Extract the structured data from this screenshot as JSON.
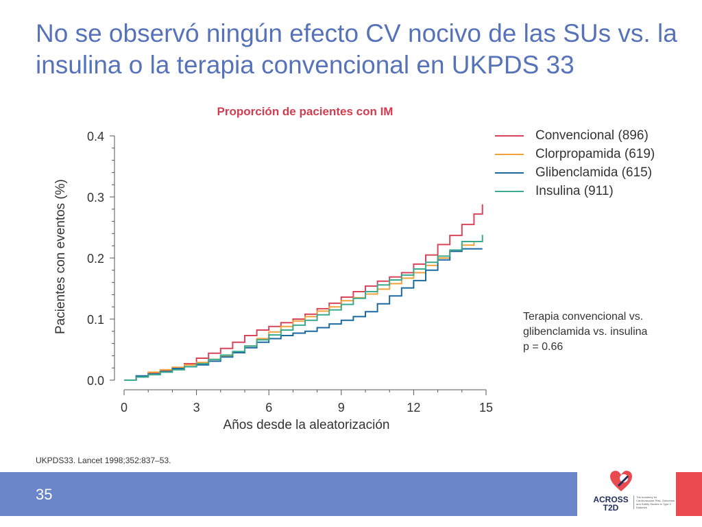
{
  "slide": {
    "title": "No se observó ningún efecto CV nocivo de las SUs vs. la insulina o la terapia convencional en UKPDS 33",
    "reference": "UKPDS33. Lancet 1998;352:837–53.",
    "page_number": "35"
  },
  "logo": {
    "text_line1": "ACROSS",
    "text_line2": "T2D",
    "tagline": "The Academy for Cardiovascular Risk, Outcomes and Safety Studies in Type 2 Diabetes",
    "colors": [
      "#e84a4f",
      "#1f2d5a"
    ]
  },
  "chart_data": {
    "type": "line",
    "title": "Proporción de pacientes con IM",
    "xlabel": "Años desde la aleatorización",
    "ylabel": "Pacientes con eventos (%)",
    "xlim": [
      0,
      15
    ],
    "ylim": [
      0,
      0.4
    ],
    "xticks": [
      0,
      3,
      6,
      9,
      12,
      15
    ],
    "yticks": [
      0.0,
      0.1,
      0.2,
      0.3,
      0.4
    ],
    "ytick_labels": [
      "0.0",
      "0.1",
      "0.2",
      "0.3",
      "0.4"
    ],
    "grid": false,
    "legend_position": "top-right",
    "annotation": [
      "Terapia convencional vs.",
      "glibenclamida vs. insulina",
      "p = 0.66"
    ],
    "series": [
      {
        "name": "Convencional (896)",
        "color": "#d9445a",
        "points": [
          [
            0,
            0
          ],
          [
            0.5,
            0.005
          ],
          [
            1,
            0.012
          ],
          [
            1.5,
            0.016
          ],
          [
            2,
            0.02
          ],
          [
            2.5,
            0.027
          ],
          [
            3,
            0.036
          ],
          [
            3.5,
            0.044
          ],
          [
            4,
            0.052
          ],
          [
            4.5,
            0.062
          ],
          [
            5,
            0.073
          ],
          [
            5.5,
            0.082
          ],
          [
            6,
            0.088
          ],
          [
            6.5,
            0.094
          ],
          [
            7,
            0.1
          ],
          [
            7.5,
            0.108
          ],
          [
            8,
            0.117
          ],
          [
            8.5,
            0.126
          ],
          [
            9,
            0.136
          ],
          [
            9.5,
            0.145
          ],
          [
            10,
            0.154
          ],
          [
            10.5,
            0.162
          ],
          [
            11,
            0.169
          ],
          [
            11.5,
            0.176
          ],
          [
            12,
            0.19
          ],
          [
            12.5,
            0.205
          ],
          [
            13,
            0.222
          ],
          [
            13.5,
            0.237
          ],
          [
            14,
            0.255
          ],
          [
            14.5,
            0.272
          ],
          [
            14.85,
            0.282
          ],
          [
            14.85,
            0.288
          ]
        ]
      },
      {
        "name": "Clorpropamida (619)",
        "color": "#f2a13a",
        "points": [
          [
            0,
            0
          ],
          [
            0.5,
            0.006
          ],
          [
            1,
            0.013
          ],
          [
            1.5,
            0.017
          ],
          [
            2,
            0.021
          ],
          [
            2.5,
            0.025
          ],
          [
            3,
            0.029
          ],
          [
            3.5,
            0.034
          ],
          [
            4,
            0.04
          ],
          [
            4.5,
            0.046
          ],
          [
            5,
            0.056
          ],
          [
            5.5,
            0.068
          ],
          [
            6,
            0.079
          ],
          [
            6.5,
            0.088
          ],
          [
            7,
            0.097
          ],
          [
            7.5,
            0.104
          ],
          [
            8,
            0.113
          ],
          [
            8.5,
            0.12
          ],
          [
            9,
            0.13
          ],
          [
            9.5,
            0.135
          ],
          [
            10,
            0.141
          ],
          [
            10.5,
            0.149
          ],
          [
            11,
            0.158
          ],
          [
            11.5,
            0.167
          ],
          [
            12,
            0.176
          ],
          [
            12.5,
            0.188
          ],
          [
            13,
            0.2
          ],
          [
            13.5,
            0.211
          ],
          [
            14,
            0.221
          ],
          [
            14.5,
            0.226
          ]
        ]
      },
      {
        "name": "Glibenclamida (615)",
        "color": "#1a69a0",
        "points": [
          [
            0,
            0
          ],
          [
            0.5,
            0.007
          ],
          [
            1,
            0.01
          ],
          [
            1.5,
            0.014
          ],
          [
            2,
            0.019
          ],
          [
            2.5,
            0.022
          ],
          [
            3,
            0.025
          ],
          [
            3.5,
            0.031
          ],
          [
            4,
            0.038
          ],
          [
            4.5,
            0.045
          ],
          [
            5,
            0.053
          ],
          [
            5.5,
            0.062
          ],
          [
            6,
            0.068
          ],
          [
            6.5,
            0.073
          ],
          [
            7,
            0.077
          ],
          [
            7.5,
            0.08
          ],
          [
            8,
            0.086
          ],
          [
            8.5,
            0.092
          ],
          [
            9,
            0.098
          ],
          [
            9.5,
            0.104
          ],
          [
            10,
            0.112
          ],
          [
            10.5,
            0.125
          ],
          [
            11,
            0.138
          ],
          [
            11.5,
            0.151
          ],
          [
            12,
            0.163
          ],
          [
            12.5,
            0.18
          ],
          [
            13,
            0.197
          ],
          [
            13.5,
            0.211
          ],
          [
            14,
            0.215
          ],
          [
            14.85,
            0.215
          ]
        ]
      },
      {
        "name": "Insulina (911)",
        "color": "#3aaa8e",
        "points": [
          [
            0,
            0
          ],
          [
            0.5,
            0.005
          ],
          [
            1,
            0.009
          ],
          [
            1.5,
            0.013
          ],
          [
            2,
            0.017
          ],
          [
            2.5,
            0.022
          ],
          [
            3,
            0.027
          ],
          [
            3.5,
            0.034
          ],
          [
            4,
            0.041
          ],
          [
            4.5,
            0.047
          ],
          [
            5,
            0.056
          ],
          [
            5.5,
            0.066
          ],
          [
            6,
            0.074
          ],
          [
            6.5,
            0.082
          ],
          [
            7,
            0.09
          ],
          [
            7.5,
            0.098
          ],
          [
            8,
            0.107
          ],
          [
            8.5,
            0.115
          ],
          [
            9,
            0.124
          ],
          [
            9.5,
            0.134
          ],
          [
            10,
            0.145
          ],
          [
            10.5,
            0.156
          ],
          [
            11,
            0.164
          ],
          [
            11.5,
            0.172
          ],
          [
            12,
            0.182
          ],
          [
            12.5,
            0.193
          ],
          [
            13,
            0.203
          ],
          [
            13.5,
            0.213
          ],
          [
            14,
            0.227
          ],
          [
            14.85,
            0.229
          ],
          [
            14.85,
            0.238
          ]
        ]
      }
    ]
  }
}
